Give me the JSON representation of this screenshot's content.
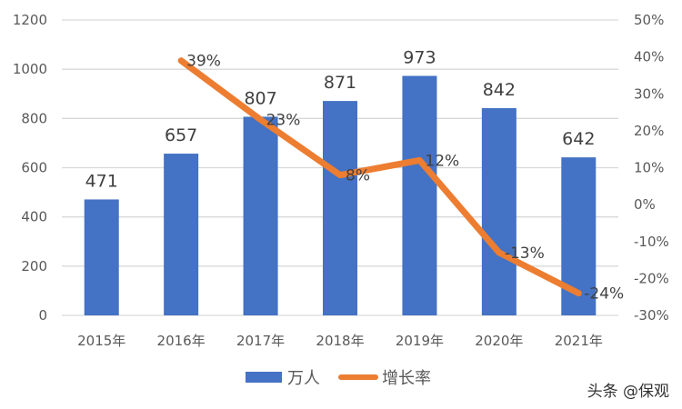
{
  "chart_data": {
    "type": "bar+line",
    "title": "",
    "categories": [
      "2015年",
      "2016年",
      "2017年",
      "2018年",
      "2019年",
      "2020年",
      "2021年"
    ],
    "series": [
      {
        "name": "万人",
        "type": "bar",
        "axis": "left",
        "color": "#4472C4",
        "values": [
          471,
          657,
          807,
          871,
          973,
          842,
          642
        ]
      },
      {
        "name": "增长率",
        "type": "line",
        "axis": "right",
        "color": "#ED7D31",
        "values": [
          null,
          39,
          23,
          8,
          12,
          -13,
          -24
        ],
        "labels": [
          "",
          "39%",
          "23%",
          "8%",
          "12%",
          "-13%",
          "-24%"
        ]
      }
    ],
    "left_axis": {
      "ylim": [
        0,
        1200
      ],
      "ticks": [
        "0",
        "200",
        "400",
        "600",
        "800",
        "1000",
        "1200"
      ]
    },
    "right_axis": {
      "ylim": [
        -30,
        50
      ],
      "ticks": [
        "-30%",
        "-20%",
        "-10%",
        "0%",
        "10%",
        "20%",
        "30%",
        "40%",
        "50%"
      ]
    },
    "grid": true,
    "legend_position": "bottom"
  },
  "legend": {
    "bar_label": "万人",
    "line_label": "增长率"
  },
  "watermark": "头条 @保观"
}
